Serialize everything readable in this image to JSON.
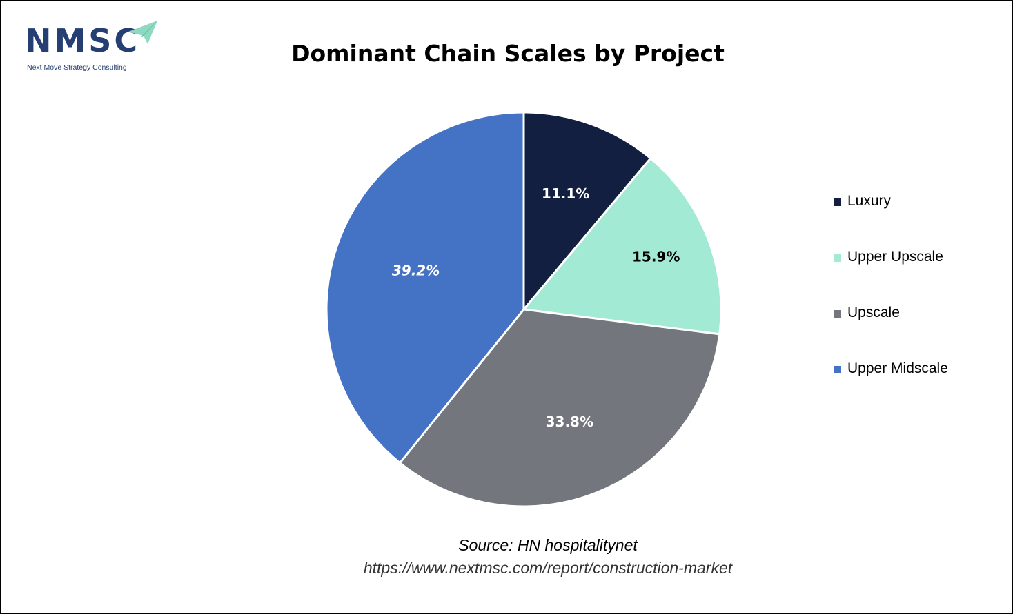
{
  "logo": {
    "name": "NMSC",
    "tagline": "Next Move Strategy Consulting"
  },
  "source": "Source: HN hospitalitynet",
  "url": "https://www.nextmsc.com/report/construction-market",
  "colors": {
    "luxury": "#121f40",
    "upper_upscale": "#a2ead4",
    "upscale": "#73767c",
    "upper_midscale": "#4472c4",
    "logo": "#263f73",
    "logo_arrow": "#8ed9c1"
  },
  "chart_data": {
    "type": "pie",
    "title": "Dominant Chain Scales by Project",
    "categories": [
      "Luxury",
      "Upper Upscale",
      "Upscale",
      "Upper Midscale"
    ],
    "values": [
      11.1,
      15.9,
      33.8,
      39.2
    ],
    "labels": [
      "11.1%",
      "15.9%",
      "33.8%",
      "39.2%"
    ],
    "colors": [
      "#121f40",
      "#a2ead4",
      "#73767c",
      "#4472c4"
    ],
    "label_colors": [
      "#ffffff",
      "#000000",
      "#ffffff",
      "#ffffff"
    ],
    "label_italic": [
      false,
      false,
      false,
      true
    ],
    "start_angle": "12 o'clock",
    "direction": "clockwise",
    "legend_position": "right"
  }
}
